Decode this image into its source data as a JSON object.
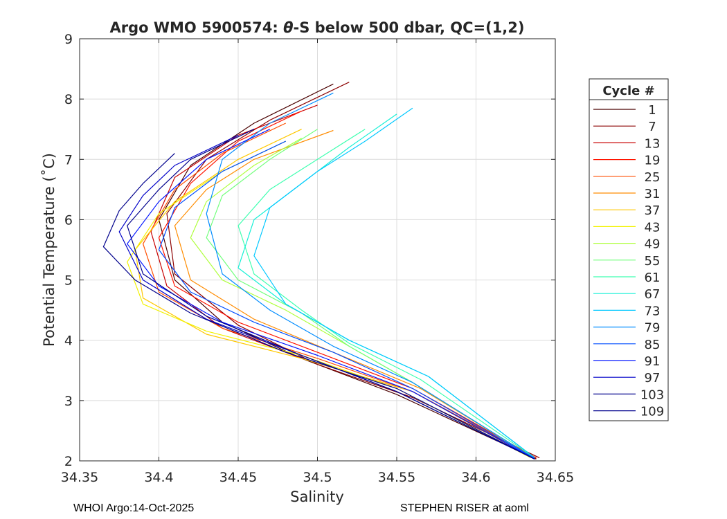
{
  "chart_data": {
    "type": "line",
    "title_prefix": "Argo WMO 5900574: ",
    "title_theta": "θ",
    "title_suffix": "-S below 500 dbar,  QC=(1,2)",
    "xlabel": "Salinity",
    "ylabel": "Potential Temperature (˚C)",
    "xlim": [
      34.35,
      34.65
    ],
    "ylim": [
      2,
      9
    ],
    "x_ticks": [
      "34.35",
      "34.4",
      "34.45",
      "34.5",
      "34.55",
      "34.6",
      "34.65"
    ],
    "y_ticks": [
      "2",
      "3",
      "4",
      "5",
      "6",
      "7",
      "8",
      "9"
    ],
    "grid": true,
    "legend": {
      "title": "Cycle #",
      "placement": "right-outside",
      "entries": [
        {
          "label": "1",
          "color": "#4a0000"
        },
        {
          "label": "7",
          "color": "#8c0000"
        },
        {
          "label": "13",
          "color": "#c80000"
        },
        {
          "label": "19",
          "color": "#ff1400"
        },
        {
          "label": "25",
          "color": "#ff4e00"
        },
        {
          "label": "31",
          "color": "#ff8c00"
        },
        {
          "label": "37",
          "color": "#ffc800"
        },
        {
          "label": "43",
          "color": "#f2f200"
        },
        {
          "label": "49",
          "color": "#b0ff3e"
        },
        {
          "label": "55",
          "color": "#72ff7c"
        },
        {
          "label": "61",
          "color": "#3effb0"
        },
        {
          "label": "67",
          "color": "#14f0d6"
        },
        {
          "label": "73",
          "color": "#00c8ff"
        },
        {
          "label": "79",
          "color": "#008cff"
        },
        {
          "label": "85",
          "color": "#004eff"
        },
        {
          "label": "91",
          "color": "#0014ff"
        },
        {
          "label": "97",
          "color": "#0000c8"
        },
        {
          "label": "103",
          "color": "#00008c"
        },
        {
          "label": "109",
          "color": "#00008c"
        }
      ]
    },
    "series": [
      {
        "name": "1",
        "x": [
          34.51,
          34.46,
          34.42,
          34.4,
          34.41,
          34.44,
          34.49,
          34.55,
          34.638
        ],
        "y": [
          8.25,
          7.6,
          6.9,
          6.0,
          5.0,
          4.3,
          3.7,
          3.1,
          2.03
        ]
      },
      {
        "name": "7",
        "x": [
          34.52,
          34.47,
          34.43,
          34.405,
          34.41,
          34.45,
          34.5,
          34.56,
          34.64
        ],
        "y": [
          8.28,
          7.65,
          7.0,
          6.1,
          5.1,
          4.25,
          3.6,
          3.05,
          2.05
        ]
      },
      {
        "name": "13",
        "x": [
          34.5,
          34.45,
          34.41,
          34.395,
          34.405,
          34.44,
          34.49,
          34.56,
          34.638
        ],
        "y": [
          7.9,
          7.4,
          6.7,
          5.8,
          4.9,
          4.2,
          3.7,
          3.15,
          2.04
        ]
      },
      {
        "name": "19",
        "x": [
          34.49,
          34.45,
          34.42,
          34.4,
          34.41,
          34.45,
          34.5,
          34.56,
          34.638
        ],
        "y": [
          7.8,
          7.3,
          6.6,
          5.7,
          4.9,
          4.3,
          3.8,
          3.2,
          2.05
        ]
      },
      {
        "name": "25",
        "x": [
          34.48,
          34.44,
          34.41,
          34.39,
          34.4,
          34.44,
          34.5,
          34.56,
          34.637
        ],
        "y": [
          7.6,
          7.1,
          6.5,
          5.6,
          4.8,
          4.2,
          3.7,
          3.15,
          2.06
        ]
      },
      {
        "name": "31",
        "x": [
          34.51,
          34.46,
          34.43,
          34.41,
          34.42,
          34.46,
          34.51,
          34.565,
          34.636
        ],
        "y": [
          7.48,
          7.0,
          6.5,
          5.9,
          5.0,
          4.35,
          3.8,
          3.2,
          2.06
        ]
      },
      {
        "name": "37",
        "x": [
          34.49,
          34.45,
          34.41,
          34.385,
          34.39,
          34.43,
          34.49,
          34.56,
          34.635
        ],
        "y": [
          7.5,
          7.0,
          6.3,
          5.5,
          4.7,
          4.1,
          3.7,
          3.15,
          2.05
        ]
      },
      {
        "name": "43",
        "x": [
          34.48,
          34.44,
          34.4,
          34.38,
          34.39,
          34.43,
          34.49,
          34.55,
          34.634
        ],
        "y": [
          7.3,
          6.8,
          6.1,
          5.3,
          4.6,
          4.15,
          3.75,
          3.2,
          2.06
        ]
      },
      {
        "name": "49",
        "x": [
          34.49,
          34.46,
          34.43,
          34.42,
          34.44,
          34.48,
          34.52,
          34.56,
          34.636
        ],
        "y": [
          7.35,
          6.9,
          6.3,
          5.7,
          5.0,
          4.5,
          3.9,
          3.3,
          2.05
        ]
      },
      {
        "name": "55",
        "x": [
          34.5,
          34.47,
          34.44,
          34.43,
          34.45,
          34.49,
          34.52,
          34.56,
          34.636
        ],
        "y": [
          7.5,
          7.0,
          6.4,
          5.7,
          5.0,
          4.45,
          3.9,
          3.3,
          2.05
        ]
      },
      {
        "name": "61",
        "x": [
          34.53,
          34.5,
          34.47,
          34.45,
          34.46,
          34.49,
          34.52,
          34.565,
          34.637
        ],
        "y": [
          7.5,
          7.0,
          6.5,
          5.9,
          5.1,
          4.5,
          3.95,
          3.35,
          2.05
        ]
      },
      {
        "name": "67",
        "x": [
          34.55,
          34.52,
          34.49,
          34.46,
          34.45,
          34.48,
          34.52,
          34.57,
          34.637
        ],
        "y": [
          7.75,
          7.2,
          6.6,
          6.0,
          5.2,
          4.6,
          4.0,
          3.4,
          2.05
        ]
      },
      {
        "name": "73",
        "x": [
          34.56,
          34.53,
          34.5,
          34.47,
          34.46,
          34.48,
          34.52,
          34.57,
          34.637
        ],
        "y": [
          7.85,
          7.3,
          6.8,
          6.2,
          5.4,
          4.6,
          4.0,
          3.4,
          2.05
        ]
      },
      {
        "name": "79",
        "x": [
          34.51,
          34.47,
          34.44,
          34.43,
          34.44,
          34.47,
          34.51,
          34.56,
          34.637
        ],
        "y": [
          8.1,
          7.6,
          7.0,
          6.1,
          5.1,
          4.5,
          3.9,
          3.3,
          2.04
        ]
      },
      {
        "name": "85",
        "x": [
          34.48,
          34.44,
          34.41,
          34.4,
          34.42,
          34.46,
          34.51,
          34.56,
          34.637
        ],
        "y": [
          7.3,
          6.8,
          6.2,
          5.5,
          4.8,
          4.3,
          3.8,
          3.2,
          2.04
        ]
      },
      {
        "name": "91",
        "x": [
          34.47,
          34.43,
          34.4,
          34.38,
          34.4,
          34.44,
          34.5,
          34.56,
          34.637
        ],
        "y": [
          7.5,
          7.0,
          6.3,
          5.6,
          4.9,
          4.3,
          3.75,
          3.15,
          2.03
        ]
      },
      {
        "name": "97",
        "x": [
          34.45,
          34.41,
          34.39,
          34.375,
          34.39,
          34.43,
          34.49,
          34.55,
          34.637
        ],
        "y": [
          7.4,
          6.9,
          6.4,
          5.8,
          5.0,
          4.35,
          3.75,
          3.15,
          2.03
        ]
      },
      {
        "name": "103",
        "x": [
          34.46,
          34.42,
          34.4,
          34.38,
          34.39,
          34.43,
          34.49,
          34.55,
          34.637
        ],
        "y": [
          7.5,
          7.0,
          6.5,
          5.9,
          5.1,
          4.4,
          3.75,
          3.15,
          2.03
        ]
      },
      {
        "name": "109",
        "x": [
          34.41,
          34.39,
          34.375,
          34.365,
          34.385,
          34.42,
          34.48,
          34.55,
          34.637
        ],
        "y": [
          7.1,
          6.6,
          6.15,
          5.55,
          5.0,
          4.45,
          3.8,
          3.2,
          2.03
        ]
      }
    ]
  },
  "footer": {
    "left": "WHOI Argo:14-Oct-2025",
    "right": "STEPHEN RISER at aoml"
  }
}
